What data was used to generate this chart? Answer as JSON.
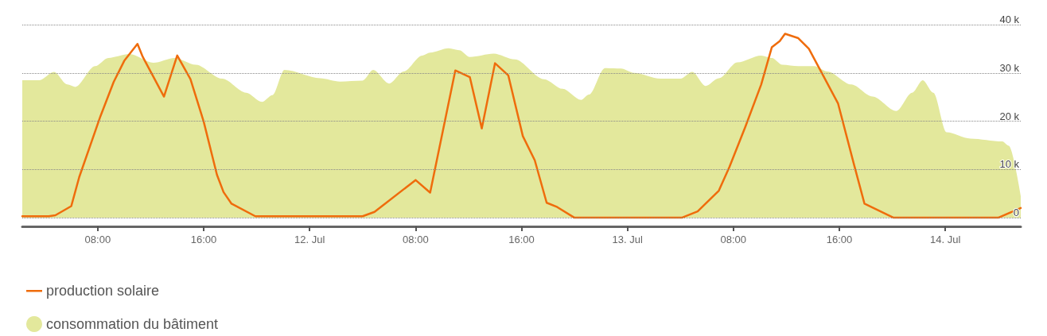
{
  "chart_data": {
    "type": "line",
    "xlim": [
      "--07-11T02:18",
      "--07-14T05:42"
    ],
    "xticks": [
      {
        "value": "--07-11T08:00",
        "label": "08:00"
      },
      {
        "value": "--07-11T16:00",
        "label": "16:00"
      },
      {
        "value": "--07-12",
        "label": "12. Jul"
      },
      {
        "value": "--07-12T08:00",
        "label": "08:00"
      },
      {
        "value": "--07-12T16:00",
        "label": "16:00"
      },
      {
        "value": "--07-13",
        "label": "13. Jul"
      },
      {
        "value": "--07-13T08:00",
        "label": "08:00"
      },
      {
        "value": "--07-13T16:00",
        "label": "16:00"
      },
      {
        "value": "--07-14",
        "label": "14. Jul"
      }
    ],
    "ylim": [
      -1800,
      40000
    ],
    "yticks": [
      {
        "value": 0,
        "label": "0"
      },
      {
        "value": 10000,
        "label": "10 k"
      },
      {
        "value": 20000,
        "label": "20 k"
      },
      {
        "value": 30000,
        "label": "30 k"
      },
      {
        "value": 40000,
        "label": "40 k"
      }
    ],
    "grid": "y",
    "legend": "bottom",
    "marker": "none",
    "series": [
      {
        "name": "consommation du bâtiment",
        "type": "area",
        "color": "#e3e89c",
        "x": [
          "--07-11T02:18",
          "--07-11T03:36",
          "--07-11T04:42",
          "--07-11T05:42",
          "--07-11T06:18",
          "--07-11T07:48",
          "--07-11T08:48",
          "--07-11T10:24",
          "--07-11T12:12",
          "--07-11T13:48",
          "--07-11T15:24",
          "--07-11T17:24",
          "--07-11T19:12",
          "--07-11T20:24",
          "--07-11T21:12",
          "--07-11T22:06",
          "--07-12T00:48",
          "--07-12T02:18",
          "--07-12T04:00",
          "--07-12T04:48",
          "--07-12T06:00",
          "--07-12T07:06",
          "--07-12T08:30",
          "--07-12T09:06",
          "--07-12T10:30",
          "--07-12T11:18",
          "--07-12T12:06",
          "--07-12T13:54",
          "--07-12T15:30",
          "--07-12T17:42",
          "--07-12T19:06",
          "--07-12T20:30",
          "--07-12T21:06",
          "--07-12T22:18",
          "--07-12T23:30",
          "--07-13T00:30",
          "--07-13T02:30",
          "--07-13T04:00",
          "--07-13T04:54",
          "--07-13T05:54",
          "--07-13T06:54",
          "--07-13T08:18",
          "--07-13T10:06",
          "--07-13T10:54",
          "--07-13T11:42",
          "--07-13T12:54",
          "--07-13T14:06",
          "--07-13T15:06",
          "--07-13T16:54",
          "--07-13T18:30",
          "--07-13T20:18",
          "--07-13T21:30",
          "--07-13T22:18",
          "--07-13T23:06",
          "--07-14T00:06",
          "--07-14T01:54",
          "--07-14T04:18",
          "--07-14T04:48",
          "--07-14T05:42"
        ],
        "values": [
          28500,
          28500,
          30200,
          27600,
          27100,
          31400,
          33100,
          33900,
          32100,
          33100,
          31700,
          28800,
          25900,
          24000,
          25400,
          30600,
          28900,
          28200,
          28400,
          30600,
          27800,
          30300,
          33600,
          34200,
          35100,
          34700,
          33300,
          34000,
          32800,
          28700,
          26700,
          24400,
          25500,
          31000,
          30900,
          30000,
          28800,
          28800,
          30200,
          27300,
          28900,
          32200,
          33600,
          33100,
          31700,
          31400,
          31400,
          30300,
          27600,
          25100,
          22100,
          25900,
          28500,
          25900,
          17700,
          16400,
          15800,
          14900,
          4500
        ]
      },
      {
        "name": "production solaire",
        "color": "#ef6c0c",
        "x": [
          "--07-11T02:18",
          "--07-11T04:18",
          "--07-11T04:48",
          "--07-11T06:00",
          "--07-11T06:36",
          "--07-11T08:12",
          "--07-11T09:12",
          "--07-11T10:00",
          "--07-11T11:00",
          "--07-11T11:24",
          "--07-11T13:00",
          "--07-11T14:00",
          "--07-11T15:00",
          "--07-11T16:00",
          "--07-11T17:00",
          "--07-11T17:30",
          "--07-11T18:06",
          "--07-11T19:54",
          "--07-12T04:00",
          "--07-12T04:54",
          "--07-12T08:00",
          "--07-12T09:06",
          "--07-12T11:00",
          "--07-12T12:06",
          "--07-12T13:00",
          "--07-12T14:00",
          "--07-12T15:00",
          "--07-12T16:06",
          "--07-12T17:00",
          "--07-12T17:54",
          "--07-12T18:42",
          "--07-12T20:00",
          "--07-13T04:06",
          "--07-13T05:18",
          "--07-13T06:54",
          "--07-13T07:42",
          "--07-13T08:54",
          "--07-13T10:06",
          "--07-13T10:54",
          "--07-13T11:30",
          "--07-13T11:54",
          "--07-13T12:54",
          "--07-13T13:42",
          "--07-13T14:30",
          "--07-13T15:54",
          "--07-13T17:06",
          "--07-13T17:54",
          "--07-13T20:06",
          "--07-14T04:00",
          "--07-14T05:42"
        ],
        "values": [
          300,
          300,
          500,
          2400,
          8400,
          21000,
          28100,
          32500,
          36000,
          33300,
          25100,
          33600,
          28700,
          19900,
          8900,
          5300,
          2900,
          300,
          300,
          1200,
          7800,
          5200,
          30500,
          29100,
          18500,
          32000,
          29500,
          16900,
          11900,
          3100,
          2200,
          0,
          0,
          1300,
          5600,
          10500,
          18800,
          27600,
          35300,
          36600,
          38100,
          37200,
          35000,
          30900,
          23700,
          11100,
          2900,
          0,
          0,
          2000
        ]
      }
    ]
  }
}
